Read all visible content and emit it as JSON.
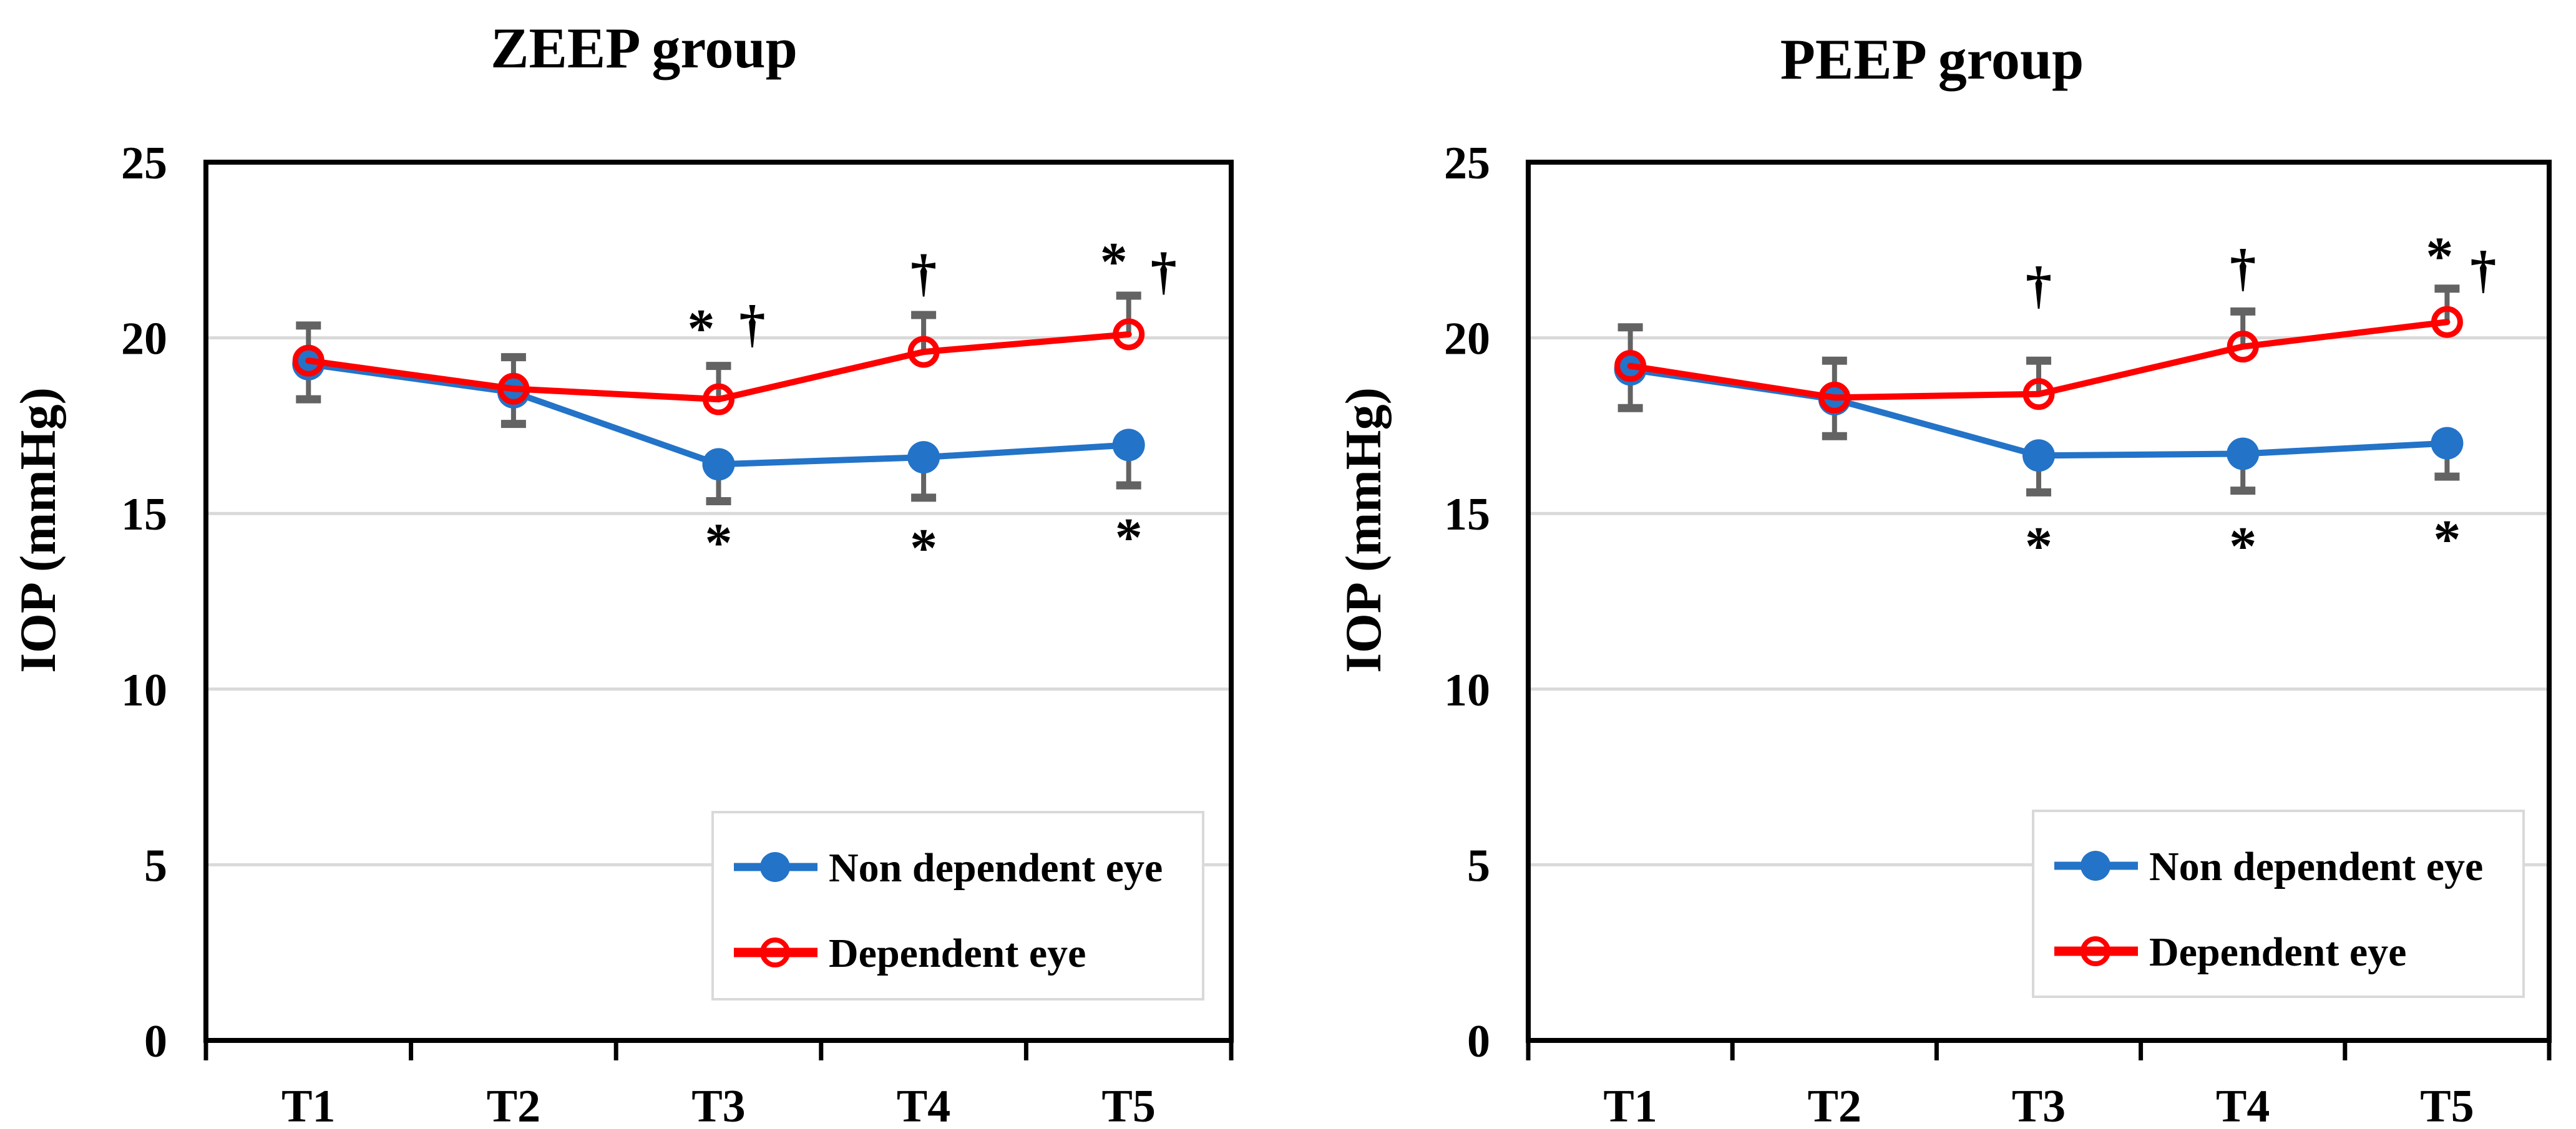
{
  "figure": {
    "y_axis_label": "IOP (mmHg)",
    "x_categories": [
      "T1",
      "T2",
      "T3",
      "T4",
      "T5"
    ],
    "colors": {
      "non_dependent": "#2373C8",
      "dependent": "#FF0000",
      "error_bar": "#636363",
      "gridline": "#D9D9D9",
      "axis": "#000000",
      "legend_border": "#D9D9D9",
      "background": "#FFFFFF",
      "text": "#000000"
    },
    "legend_items": [
      {
        "series": "non_dependent",
        "label": "Non dependent eye",
        "marker": "filled-circle"
      },
      {
        "series": "dependent",
        "label": "Dependent eye",
        "marker": "open-circle"
      }
    ]
  },
  "chart_data": [
    {
      "id": "zeep",
      "type": "line",
      "title": "ZEEP group",
      "xlabel": "",
      "ylabel": "IOP (mmHg)",
      "ylim": [
        0,
        25
      ],
      "yticks": [
        0,
        5,
        10,
        15,
        20,
        25
      ],
      "grid": "horizontal",
      "legend_position": "lower-right",
      "categories": [
        "T1",
        "T2",
        "T3",
        "T4",
        "T5"
      ],
      "series": [
        {
          "key": "non_dependent",
          "name": "Non dependent eye",
          "marker": "filled-circle",
          "color": "#2373C8",
          "values": [
            19.25,
            18.45,
            16.4,
            16.6,
            16.95
          ],
          "err_down": [
            1.0,
            0.9,
            1.05,
            1.15,
            1.15
          ],
          "err_up": [
            null,
            null,
            null,
            null,
            null
          ]
        },
        {
          "key": "dependent",
          "name": "Dependent eye",
          "marker": "open-circle",
          "color": "#FF0000",
          "values": [
            19.35,
            18.55,
            18.25,
            19.6,
            20.1
          ],
          "err_down": [
            null,
            null,
            null,
            null,
            null
          ],
          "err_up": [
            1.0,
            0.9,
            0.95,
            1.05,
            1.1
          ]
        }
      ],
      "annotations": [
        {
          "text": "*",
          "category": "T3",
          "y": 20.65,
          "dx": -28
        },
        {
          "text": "†",
          "category": "T3",
          "y": 20.4,
          "dx": 54
        },
        {
          "text": "†",
          "category": "T4",
          "y": 21.85,
          "dx": 0
        },
        {
          "text": "*",
          "category": "T5",
          "y": 22.55,
          "dx": -24
        },
        {
          "text": "†",
          "category": "T5",
          "y": 21.9,
          "dx": 56
        },
        {
          "text": "*",
          "category": "T3",
          "y": 14.55,
          "dx": 0
        },
        {
          "text": "*",
          "category": "T4",
          "y": 14.4,
          "dx": 0
        },
        {
          "text": "*",
          "category": "T5",
          "y": 14.7,
          "dx": 0
        }
      ]
    },
    {
      "id": "peep",
      "type": "line",
      "title": "PEEP group",
      "xlabel": "",
      "ylabel": "IOP (mmHg)",
      "ylim": [
        0,
        25
      ],
      "yticks": [
        0,
        5,
        10,
        15,
        20,
        25
      ],
      "grid": "horizontal",
      "legend_position": "lower-right",
      "categories": [
        "T1",
        "T2",
        "T3",
        "T4",
        "T5"
      ],
      "series": [
        {
          "key": "non_dependent",
          "name": "Non dependent eye",
          "marker": "filled-circle",
          "color": "#2373C8",
          "values": [
            19.1,
            18.25,
            16.65,
            16.7,
            17.0
          ],
          "err_down": [
            1.1,
            1.05,
            1.05,
            1.05,
            0.95
          ],
          "err_up": [
            null,
            null,
            null,
            null,
            null
          ]
        },
        {
          "key": "dependent",
          "name": "Dependent eye",
          "marker": "open-circle",
          "color": "#FF0000",
          "values": [
            19.2,
            18.3,
            18.4,
            19.75,
            20.45
          ],
          "err_down": [
            null,
            null,
            null,
            null,
            null
          ],
          "err_up": [
            1.1,
            1.05,
            0.95,
            1.0,
            0.95
          ]
        }
      ],
      "annotations": [
        {
          "text": "†",
          "category": "T3",
          "y": 21.5,
          "dx": 0
        },
        {
          "text": "†",
          "category": "T4",
          "y": 22.0,
          "dx": 0
        },
        {
          "text": "*",
          "category": "T5",
          "y": 22.7,
          "dx": -12
        },
        {
          "text": "†",
          "category": "T5",
          "y": 21.95,
          "dx": 58
        },
        {
          "text": "*",
          "category": "T3",
          "y": 14.45,
          "dx": 0
        },
        {
          "text": "*",
          "category": "T4",
          "y": 14.45,
          "dx": 0
        },
        {
          "text": "*",
          "category": "T5",
          "y": 14.65,
          "dx": 0
        }
      ]
    }
  ]
}
